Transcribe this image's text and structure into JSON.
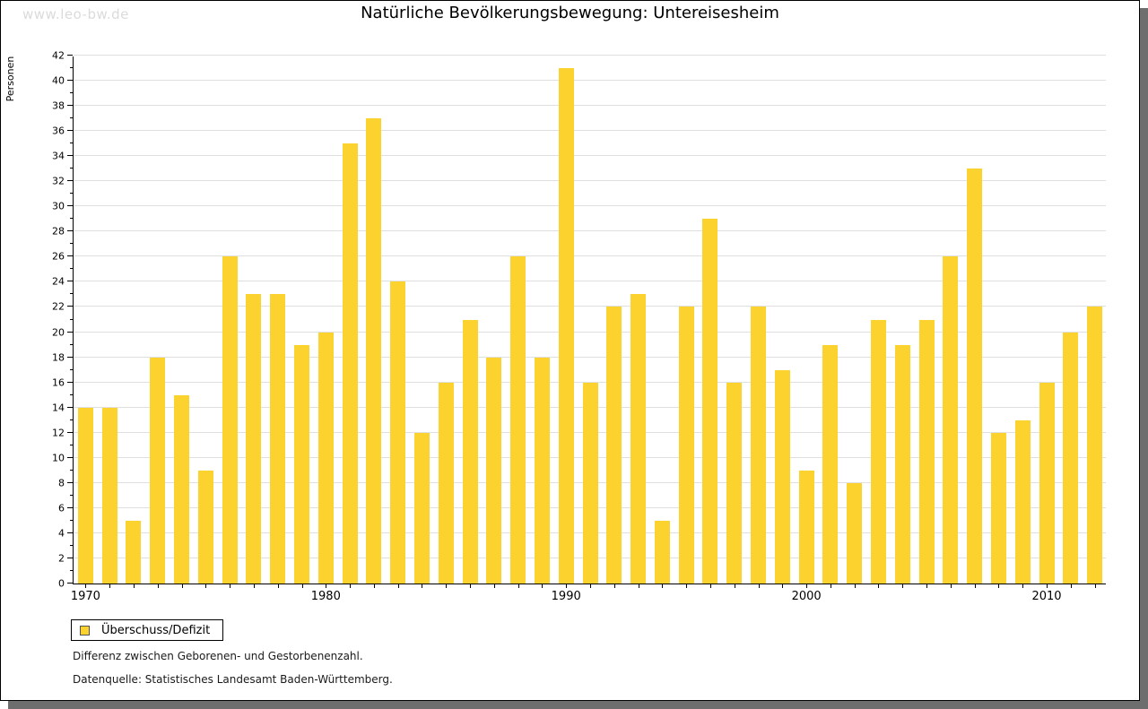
{
  "watermark": "www.leo-bw.de",
  "title": "Natürliche Bevölkerungsbewegung: Untereisesheim",
  "legend": {
    "label": "Überschuss/Defizit"
  },
  "footnotes": {
    "line1": "Differenz zwischen Geborenen- und Gestorbenenzahl.",
    "line2": "Datenquelle: Statistisches Landesamt Baden-Württemberg."
  },
  "colors": {
    "bar": "#fcd32e",
    "swatch_border": "#555555",
    "grid": "#e0e0e0",
    "axis": "#000000",
    "watermark": "#dbdbdb",
    "shadow": "#6e6e6e"
  },
  "chart_data": {
    "type": "bar",
    "title": "Natürliche Bevölkerungsbewegung: Untereisesheim",
    "xlabel": "",
    "ylabel": "Personen",
    "ylim": [
      0,
      42
    ],
    "y_major_tick_step": 2,
    "y_minor_tick_step": 1,
    "grid": true,
    "legend_position": "bottom-left",
    "categories": [
      1970,
      1971,
      1972,
      1973,
      1974,
      1975,
      1976,
      1977,
      1978,
      1979,
      1980,
      1981,
      1982,
      1983,
      1984,
      1985,
      1986,
      1987,
      1988,
      1989,
      1990,
      1991,
      1992,
      1993,
      1994,
      1995,
      1996,
      1997,
      1998,
      1999,
      2000,
      2001,
      2002,
      2003,
      2004,
      2005,
      2006,
      2007,
      2008,
      2009,
      2010,
      2011,
      2012
    ],
    "x_labeled_ticks": [
      1970,
      1980,
      1990,
      2000,
      2010
    ],
    "series": [
      {
        "name": "Überschuss/Defizit",
        "values": [
          14,
          14,
          5,
          18,
          15,
          9,
          26,
          23,
          23,
          19,
          20,
          35,
          37,
          24,
          12,
          16,
          21,
          18,
          26,
          18,
          41,
          16,
          22,
          23,
          5,
          22,
          29,
          16,
          22,
          17,
          9,
          19,
          8,
          21,
          19,
          21,
          26,
          33,
          12,
          13,
          16,
          20,
          22
        ]
      }
    ]
  }
}
